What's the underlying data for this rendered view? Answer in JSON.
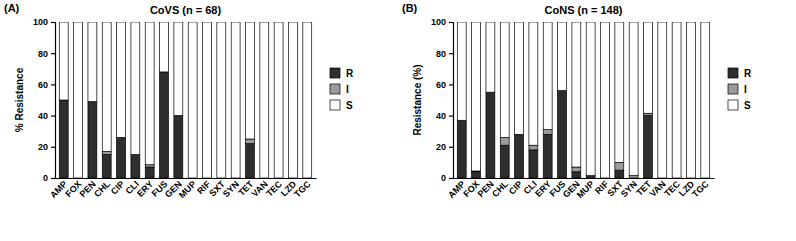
{
  "chart_data": [
    {
      "type": "bar",
      "stacked": true,
      "title": "CoVS (n = 68)",
      "annotations": [
        "(A)"
      ],
      "y_label": "% Resistance",
      "categories": [
        "AMP",
        "FOX",
        "PEN",
        "CHL",
        "CIP",
        "CLI",
        "ERY",
        "FUS",
        "GEN",
        "MUP",
        "RIF",
        "SXT",
        "SYN",
        "TET",
        "VAN",
        "TEC",
        "LZD",
        "TGC"
      ],
      "series": [
        {
          "name": "R",
          "color": "#2e2e2e",
          "values": [
            50,
            0,
            49,
            15,
            26,
            15,
            7,
            68,
            40,
            0,
            0,
            0,
            0,
            22,
            0,
            0,
            0,
            0
          ]
        },
        {
          "name": "I",
          "color": "#9b9b9b",
          "values": [
            0,
            0,
            0,
            2,
            0,
            0,
            1.5,
            0,
            0,
            0,
            0,
            0,
            0,
            3,
            0,
            0,
            0,
            0
          ]
        },
        {
          "name": "S",
          "color": "#ffffff",
          "values": [
            50,
            100,
            51,
            83,
            74,
            85,
            91.5,
            32,
            60,
            100,
            100,
            100,
            100,
            75,
            100,
            100,
            100,
            100
          ]
        }
      ],
      "ylim": [
        0,
        100
      ],
      "yticks": [
        0,
        20,
        40,
        60,
        80,
        100
      ],
      "legend": "right"
    },
    {
      "type": "bar",
      "stacked": true,
      "title": "CoNS (n = 148)",
      "annotations": [
        "(B)"
      ],
      "y_label": "Resistance (%)",
      "categories": [
        "AMP",
        "FOX",
        "PEN",
        "CHL",
        "CIP",
        "CLI",
        "ERY",
        "FUS",
        "GEN",
        "MUP",
        "RIF",
        "SXT",
        "SYN",
        "TET",
        "VAN",
        "TEC",
        "LZD",
        "TGC"
      ],
      "series": [
        {
          "name": "R",
          "color": "#2e2e2e",
          "values": [
            37,
            4,
            55,
            21,
            28,
            18,
            28,
            56,
            4,
            1.5,
            0,
            5,
            0,
            40,
            0,
            0,
            0,
            0
          ]
        },
        {
          "name": "I",
          "color": "#9b9b9b",
          "values": [
            0,
            0.5,
            0,
            5,
            0,
            3,
            3,
            0,
            3,
            0,
            0,
            5,
            1.5,
            1.5,
            0,
            0,
            0,
            0
          ]
        },
        {
          "name": "S",
          "color": "#ffffff",
          "values": [
            63,
            95.5,
            45,
            74,
            72,
            79,
            69,
            44,
            93,
            98.5,
            100,
            90,
            98.5,
            58.5,
            100,
            100,
            100,
            100
          ]
        }
      ],
      "ylim": [
        0,
        100
      ],
      "yticks": [
        0,
        20,
        40,
        60,
        80,
        100
      ],
      "legend": "right"
    }
  ]
}
